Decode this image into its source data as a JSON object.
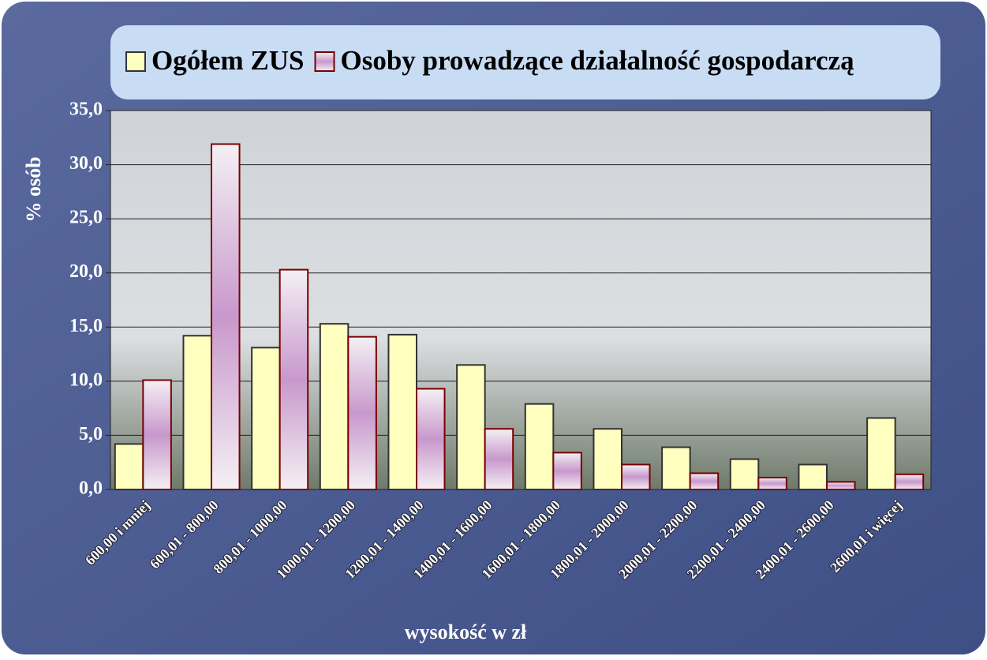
{
  "chart_data": {
    "type": "bar",
    "categories": [
      "600,00 i mniej",
      "600,01 - 800,00",
      "800,01 - 1000,00",
      "1000,01 - 1200,00",
      "1200,01 - 1400,00",
      "1400,01 - 1600,00",
      "1600,01 - 1800,00",
      "1800,01 - 2000,00",
      "2000,01 - 2200,00",
      "2200,01 - 2400,00",
      "2400,01 - 2600,00",
      "2600,01 i więcej"
    ],
    "series": [
      {
        "name": "Ogółem ZUS",
        "color": "#ffffc0",
        "values": [
          4.2,
          14.2,
          13.1,
          15.3,
          14.3,
          11.5,
          7.9,
          5.6,
          3.9,
          2.8,
          2.3,
          6.6
        ]
      },
      {
        "name": "Osoby prowadzące działalność gospodarczą",
        "color": "#c898cc",
        "values": [
          10.1,
          31.9,
          20.3,
          14.1,
          9.3,
          5.6,
          3.4,
          2.3,
          1.5,
          1.1,
          0.7,
          1.4
        ]
      }
    ],
    "x_label": "wysokość w zł",
    "y_label": "% osób",
    "ylim": [
      0,
      35
    ],
    "yticks": [
      {
        "value": 0,
        "label": "0,0"
      },
      {
        "value": 5,
        "label": "5,0"
      },
      {
        "value": 10,
        "label": "10,0"
      },
      {
        "value": 15,
        "label": "15,0"
      },
      {
        "value": 20,
        "label": "20,0"
      },
      {
        "value": 25,
        "label": "25,0"
      },
      {
        "value": 30,
        "label": "30,0"
      },
      {
        "value": 35,
        "label": "35,0"
      }
    ],
    "grid": true
  }
}
